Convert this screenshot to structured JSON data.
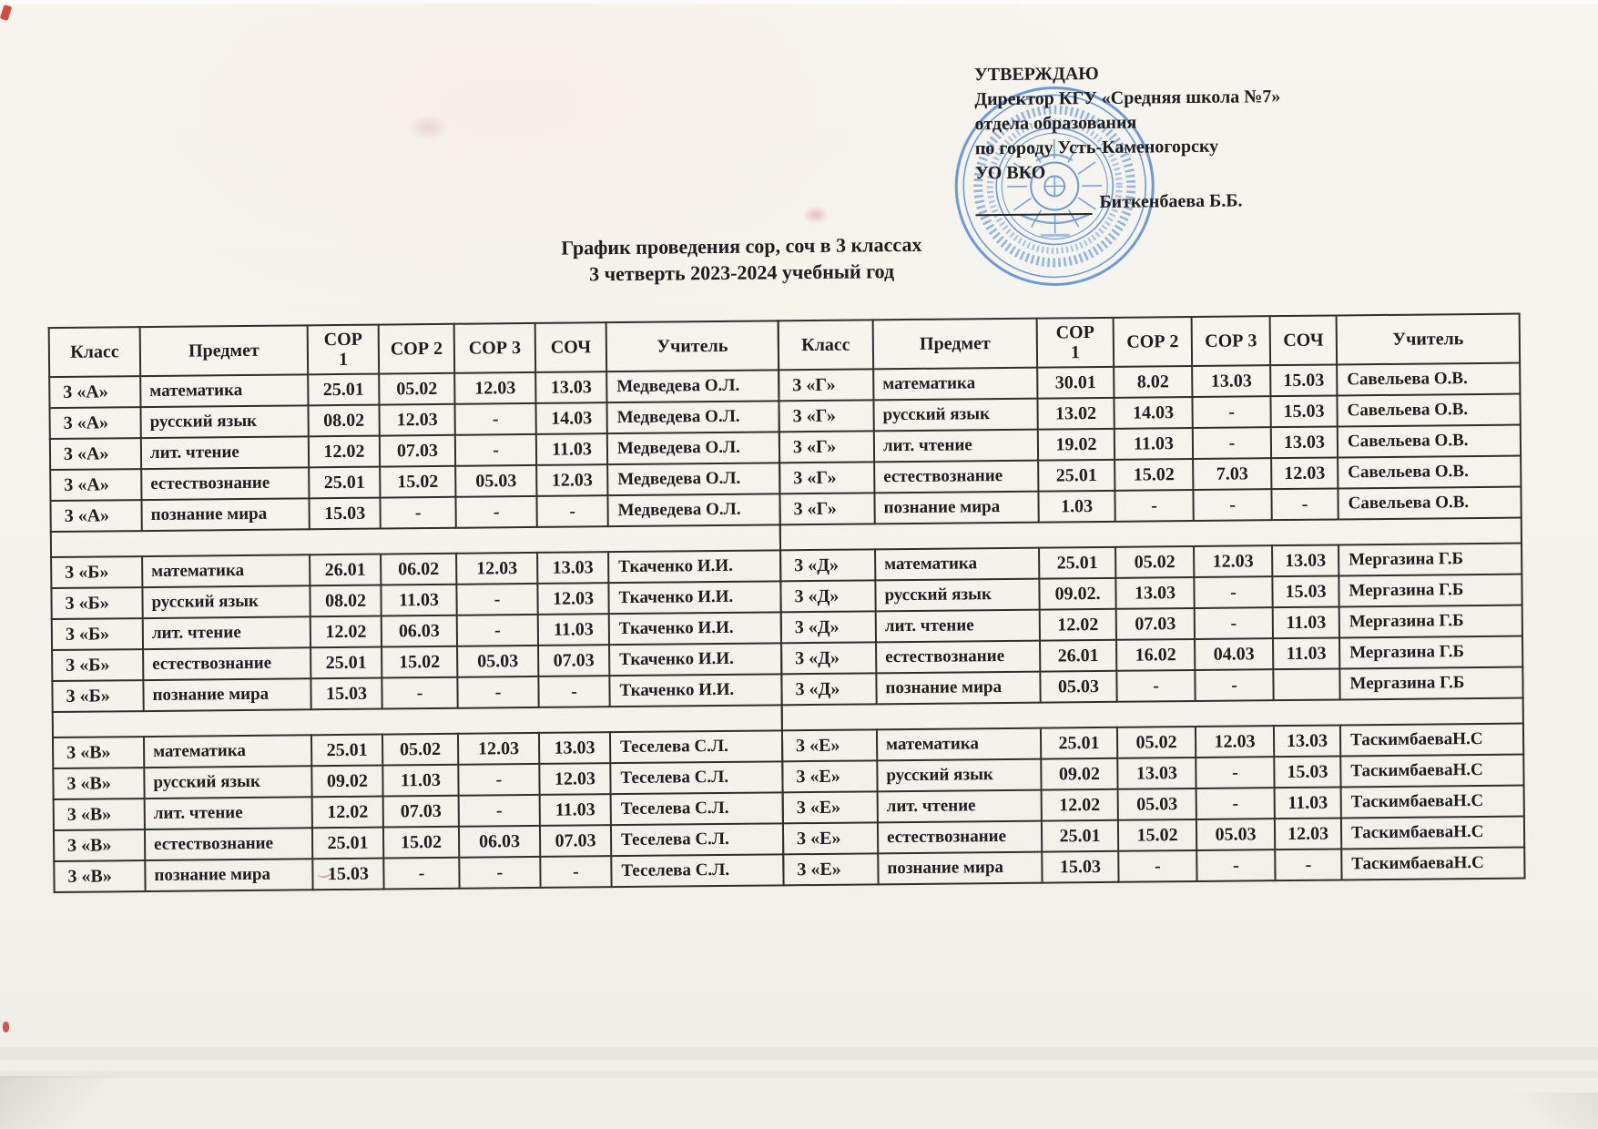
{
  "approval": {
    "lines": [
      "УТВЕРЖДАЮ",
      "Директор КГУ «Средняя школа №7»",
      "отдела образования",
      "по городу Усть-Каменогорску",
      "УО ВКО"
    ],
    "signature_name": "Биткенбаева Б.Б."
  },
  "stamp": {
    "icon": "round-school-stamp",
    "color": "#4d87d3"
  },
  "title": {
    "line1": "График проведения сор, соч в 3 классах",
    "line2": "3 четверть 2023-2024 учебный год"
  },
  "table": {
    "headers": [
      "Класс",
      "Предмет",
      "СОР 1",
      "СОР 2",
      "СОР 3",
      "СОЧ",
      "Учитель"
    ],
    "left_sections": [
      {
        "rows": [
          {
            "klass": "3 «А»",
            "subject": "математика",
            "sor1": "25.01",
            "sor2": "05.02",
            "sor3": "12.03",
            "soch": "13.03",
            "teacher": "Медведева О.Л."
          },
          {
            "klass": "3 «А»",
            "subject": "русский язык",
            "sor1": "08.02",
            "sor2": "12.03",
            "sor3": "-",
            "soch": "14.03",
            "teacher": "Медведева О.Л."
          },
          {
            "klass": "3 «А»",
            "subject": "лит. чтение",
            "sor1": "12.02",
            "sor2": "07.03",
            "sor3": "-",
            "soch": "11.03",
            "teacher": "Медведева О.Л."
          },
          {
            "klass": "3 «А»",
            "subject": "естествознание",
            "sor1": "25.01",
            "sor2": "15.02",
            "sor3": "05.03",
            "soch": "12.03",
            "teacher": "Медведева О.Л."
          },
          {
            "klass": "3 «А»",
            "subject": "познание мира",
            "sor1": "15.03",
            "sor2": "-",
            "sor3": "-",
            "soch": "-",
            "teacher": "Медведева О.Л."
          }
        ]
      },
      {
        "rows": [
          {
            "klass": "3 «Б»",
            "subject": "математика",
            "sor1": "26.01",
            "sor2": "06.02",
            "sor3": "12.03",
            "soch": "13.03",
            "teacher": "Ткаченко И.И."
          },
          {
            "klass": "3 «Б»",
            "subject": "русский язык",
            "sor1": "08.02",
            "sor2": "11.03",
            "sor3": "-",
            "soch": "12.03",
            "teacher": "Ткаченко И.И."
          },
          {
            "klass": "3 «Б»",
            "subject": "лит. чтение",
            "sor1": "12.02",
            "sor2": "06.03",
            "sor3": "-",
            "soch": "11.03",
            "teacher": "Ткаченко И.И."
          },
          {
            "klass": "3 «Б»",
            "subject": "естествознание",
            "sor1": "25.01",
            "sor2": "15.02",
            "sor3": "05.03",
            "soch": "07.03",
            "teacher": "Ткаченко И.И."
          },
          {
            "klass": "3 «Б»",
            "subject": "познание мира",
            "sor1": "15.03",
            "sor2": "-",
            "sor3": "-",
            "soch": "-",
            "teacher": "Ткаченко И.И."
          }
        ]
      },
      {
        "rows": [
          {
            "klass": "3 «В»",
            "subject": "математика",
            "sor1": "25.01",
            "sor2": "05.02",
            "sor3": "12.03",
            "soch": "13.03",
            "teacher": "Теселева С.Л."
          },
          {
            "klass": "3 «В»",
            "subject": "русский язык",
            "sor1": "09.02",
            "sor2": "11.03",
            "sor3": "-",
            "soch": "12.03",
            "teacher": "Теселева С.Л."
          },
          {
            "klass": "3 «В»",
            "subject": "лит. чтение",
            "sor1": "12.02",
            "sor2": "07.03",
            "sor3": "-",
            "soch": "11.03",
            "teacher": "Теселева С.Л."
          },
          {
            "klass": "3 «В»",
            "subject": "естествознание",
            "sor1": "25.01",
            "sor2": "15.02",
            "sor3": "06.03",
            "soch": "07.03",
            "teacher": "Теселева С.Л."
          },
          {
            "klass": "3 «В»",
            "subject": "познание мира",
            "sor1": "15.03",
            "sor2": "-",
            "sor3": "-",
            "soch": "-",
            "teacher": "Теселева С.Л."
          }
        ]
      }
    ],
    "right_sections": [
      {
        "rows": [
          {
            "klass": "3 «Г»",
            "subject": "математика",
            "sor1": "30.01",
            "sor2": "8.02",
            "sor3": "13.03",
            "soch": "15.03",
            "teacher": "Савельева О.В."
          },
          {
            "klass": "3 «Г»",
            "subject": "русский язык",
            "sor1": "13.02",
            "sor2": "14.03",
            "sor3": "-",
            "soch": "15.03",
            "teacher": "Савельева О.В."
          },
          {
            "klass": "3 «Г»",
            "subject": "лит. чтение",
            "sor1": "19.02",
            "sor2": "11.03",
            "sor3": "-",
            "soch": "13.03",
            "teacher": "Савельева О.В."
          },
          {
            "klass": "3 «Г»",
            "subject": "естествознание",
            "sor1": "25.01",
            "sor2": "15.02",
            "sor3": "7.03",
            "soch": "12.03",
            "teacher": "Савельева О.В."
          },
          {
            "klass": "3 «Г»",
            "subject": "познание мира",
            "sor1": "1.03",
            "sor2": "-",
            "sor3": "-",
            "soch": "-",
            "teacher": "Савельева О.В."
          }
        ]
      },
      {
        "rows": [
          {
            "klass": "3 «Д»",
            "subject": "математика",
            "sor1": "25.01",
            "sor2": "05.02",
            "sor3": "12.03",
            "soch": "13.03",
            "teacher": "Мергазина Г.Б"
          },
          {
            "klass": "3 «Д»",
            "subject": "русский язык",
            "sor1": "09.02.",
            "sor2": "13.03",
            "sor3": "-",
            "soch": "15.03",
            "teacher": "Мергазина Г.Б"
          },
          {
            "klass": "3 «Д»",
            "subject": "лит. чтение",
            "sor1": "12.02",
            "sor2": "07.03",
            "sor3": "-",
            "soch": "11.03",
            "teacher": "Мергазина Г.Б"
          },
          {
            "klass": "3 «Д»",
            "subject": "естествознание",
            "sor1": "26.01",
            "sor2": "16.02",
            "sor3": "04.03",
            "soch": "11.03",
            "teacher": "Мергазина Г.Б"
          },
          {
            "klass": "3 «Д»",
            "subject": "познание мира",
            "sor1": "05.03",
            "sor2": "-",
            "sor3": "-",
            "soch": "",
            "teacher": "Мергазина Г.Б"
          }
        ]
      },
      {
        "rows": [
          {
            "klass": "3 «Е»",
            "subject": "математика",
            "sor1": "25.01",
            "sor2": "05.02",
            "sor3": "12.03",
            "soch": "13.03",
            "teacher": "ТаскимбаеваН.С"
          },
          {
            "klass": "3 «Е»",
            "subject": "русский язык",
            "sor1": "09.02",
            "sor2": "13.03",
            "sor3": "-",
            "soch": "15.03",
            "teacher": "ТаскимбаеваН.С"
          },
          {
            "klass": "3 «Е»",
            "subject": "лит. чтение",
            "sor1": "12.02",
            "sor2": "05.03",
            "sor3": "-",
            "soch": "11.03",
            "teacher": "ТаскимбаеваН.С"
          },
          {
            "klass": "3 «Е»",
            "subject": "естествознание",
            "sor1": "25.01",
            "sor2": "15.02",
            "sor3": "05.03",
            "soch": "12.03",
            "teacher": "ТаскимбаеваН.С"
          },
          {
            "klass": "3 «Е»",
            "subject": "познание мира",
            "sor1": "15.03",
            "sor2": "-",
            "sor3": "-",
            "soch": "-",
            "teacher": "ТаскимбаеваН.С"
          }
        ]
      }
    ]
  }
}
